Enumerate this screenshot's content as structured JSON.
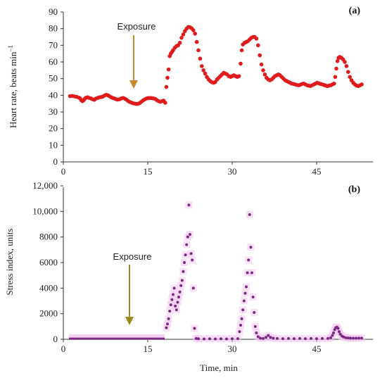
{
  "chart_data": [
    {
      "type": "scatter",
      "panel_label": "(a)",
      "ylabel": "Heart rate, beats min",
      "ylabel_sup": "−1",
      "xlabel": "",
      "xlim": [
        0,
        55
      ],
      "ylim": [
        0,
        90
      ],
      "x_ticks": [
        "0",
        "15",
        "30",
        "45"
      ],
      "y_ticks": [
        "0",
        "10",
        "20",
        "30",
        "40",
        "50",
        "60",
        "70",
        "80",
        "90"
      ],
      "annotation": {
        "text": "Exposure",
        "x": 13,
        "arrow_color": "#c98a2e"
      },
      "series": [
        {
          "color": "#e01b1b",
          "points": [
            [
              1.2,
              39.5
            ],
            [
              1.6,
              39.6
            ],
            [
              2.0,
              39.3
            ],
            [
              2.4,
              39.0
            ],
            [
              2.8,
              38.5
            ],
            [
              3.0,
              38.0
            ],
            [
              3.2,
              37.0
            ],
            [
              3.4,
              36.5
            ],
            [
              3.6,
              37.0
            ],
            [
              3.8,
              37.8
            ],
            [
              4.0,
              38.5
            ],
            [
              4.3,
              38.8
            ],
            [
              4.6,
              38.4
            ],
            [
              4.9,
              38.1
            ],
            [
              5.2,
              37.6
            ],
            [
              5.5,
              37.3
            ],
            [
              5.8,
              38.0
            ],
            [
              6.1,
              38.4
            ],
            [
              6.4,
              38.8
            ],
            [
              6.7,
              38.9
            ],
            [
              7.0,
              39.2
            ],
            [
              7.3,
              39.8
            ],
            [
              7.6,
              40.3
            ],
            [
              7.9,
              40.0
            ],
            [
              8.2,
              39.4
            ],
            [
              8.5,
              38.8
            ],
            [
              8.8,
              38.4
            ],
            [
              9.1,
              38.0
            ],
            [
              9.4,
              37.6
            ],
            [
              9.7,
              37.4
            ],
            [
              10.0,
              37.6
            ],
            [
              10.3,
              38.1
            ],
            [
              10.6,
              38.4
            ],
            [
              10.9,
              38.0
            ],
            [
              11.2,
              37.4
            ],
            [
              11.5,
              36.6
            ],
            [
              11.8,
              36.0
            ],
            [
              12.1,
              35.6
            ],
            [
              12.4,
              35.2
            ],
            [
              12.7,
              35.0
            ],
            [
              13.0,
              34.8
            ],
            [
              13.3,
              34.9
            ],
            [
              13.6,
              35.4
            ],
            [
              13.9,
              36.2
            ],
            [
              14.2,
              37.0
            ],
            [
              14.5,
              37.6
            ],
            [
              14.8,
              38.1
            ],
            [
              15.1,
              38.3
            ],
            [
              15.4,
              38.4
            ],
            [
              15.7,
              38.3
            ],
            [
              16.0,
              38.1
            ],
            [
              16.3,
              37.8
            ],
            [
              16.6,
              37.1
            ],
            [
              16.9,
              36.5
            ],
            [
              17.2,
              36.1
            ],
            [
              17.5,
              36.4
            ],
            [
              17.8,
              36.8
            ],
            [
              18.1,
              35.5
            ],
            [
              18.3,
              45.0
            ],
            [
              18.5,
              50.5
            ],
            [
              18.7,
              55.5
            ],
            [
              18.9,
              63.5
            ],
            [
              19.1,
              65.0
            ],
            [
              19.3,
              66.0
            ],
            [
              19.5,
              67.0
            ],
            [
              19.8,
              68.5
            ],
            [
              20.1,
              69.5
            ],
            [
              20.4,
              70.0
            ],
            [
              20.7,
              71.5
            ],
            [
              21.0,
              74.5
            ],
            [
              21.3,
              76.5
            ],
            [
              21.6,
              78.5
            ],
            [
              21.9,
              80.0
            ],
            [
              22.2,
              81.0
            ],
            [
              22.5,
              80.8
            ],
            [
              22.8,
              80.2
            ],
            [
              23.1,
              79.0
            ],
            [
              23.4,
              77.0
            ],
            [
              23.7,
              72.0
            ],
            [
              24.0,
              67.0
            ],
            [
              24.3,
              62.0
            ],
            [
              24.6,
              57.5
            ],
            [
              24.9,
              55.0
            ],
            [
              25.2,
              53.0
            ],
            [
              25.5,
              51.0
            ],
            [
              25.8,
              49.5
            ],
            [
              26.1,
              48.5
            ],
            [
              26.4,
              47.8
            ],
            [
              26.7,
              47.5
            ],
            [
              27.0,
              48.0
            ],
            [
              27.3,
              49.5
            ],
            [
              27.6,
              50.5
            ],
            [
              27.9,
              51.5
            ],
            [
              28.2,
              52.5
            ],
            [
              28.5,
              53.5
            ],
            [
              28.8,
              53.0
            ],
            [
              29.1,
              52.5
            ],
            [
              29.4,
              51.5
            ],
            [
              29.7,
              51.0
            ],
            [
              30.0,
              51.5
            ],
            [
              30.3,
              52.0
            ],
            [
              30.6,
              51.5
            ],
            [
              30.9,
              51.0
            ],
            [
              31.2,
              51.5
            ],
            [
              31.5,
              59.0
            ],
            [
              31.7,
              67.0
            ],
            [
              31.9,
              70.5
            ],
            [
              32.2,
              71.5
            ],
            [
              32.5,
              72.0
            ],
            [
              32.8,
              72.5
            ],
            [
              33.1,
              73.5
            ],
            [
              33.4,
              74.5
            ],
            [
              33.7,
              75.0
            ],
            [
              34.0,
              75.0
            ],
            [
              34.3,
              74.0
            ],
            [
              34.6,
              70.0
            ],
            [
              34.9,
              64.0
            ],
            [
              35.2,
              58.5
            ],
            [
              35.5,
              55.0
            ],
            [
              35.8,
              52.5
            ],
            [
              36.1,
              50.5
            ],
            [
              36.4,
              49.5
            ],
            [
              36.7,
              49.0
            ],
            [
              37.0,
              49.5
            ],
            [
              37.3,
              50.5
            ],
            [
              37.6,
              51.5
            ],
            [
              37.9,
              52.0
            ],
            [
              38.2,
              52.5
            ],
            [
              38.5,
              52.0
            ],
            [
              38.8,
              51.0
            ],
            [
              39.1,
              50.0
            ],
            [
              39.4,
              49.0
            ],
            [
              39.7,
              48.5
            ],
            [
              40.0,
              48.0
            ],
            [
              40.3,
              47.5
            ],
            [
              40.6,
              47.0
            ],
            [
              40.9,
              46.8
            ],
            [
              41.2,
              46.5
            ],
            [
              41.5,
              46.2
            ],
            [
              41.8,
              46.0
            ],
            [
              42.1,
              46.3
            ],
            [
              42.4,
              46.8
            ],
            [
              42.7,
              47.0
            ],
            [
              43.0,
              46.5
            ],
            [
              43.3,
              46.0
            ],
            [
              43.6,
              45.8
            ],
            [
              43.9,
              45.5
            ],
            [
              44.2,
              46.0
            ],
            [
              44.5,
              46.5
            ],
            [
              44.8,
              47.0
            ],
            [
              45.1,
              47.5
            ],
            [
              45.4,
              47.2
            ],
            [
              45.7,
              46.8
            ],
            [
              46.0,
              46.5
            ],
            [
              46.3,
              46.2
            ],
            [
              46.6,
              45.8
            ],
            [
              46.9,
              45.5
            ],
            [
              47.2,
              45.8
            ],
            [
              47.5,
              46.0
            ],
            [
              47.8,
              46.5
            ],
            [
              48.1,
              47.0
            ],
            [
              48.3,
              51.0
            ],
            [
              48.5,
              56.0
            ],
            [
              48.7,
              60.5
            ],
            [
              48.9,
              62.5
            ],
            [
              49.1,
              63.0
            ],
            [
              49.4,
              62.5
            ],
            [
              49.7,
              61.5
            ],
            [
              50.0,
              60.0
            ],
            [
              50.3,
              57.5
            ],
            [
              50.6,
              54.0
            ],
            [
              50.9,
              51.0
            ],
            [
              51.2,
              49.0
            ],
            [
              51.5,
              47.5
            ],
            [
              51.8,
              46.5
            ],
            [
              52.1,
              45.8
            ],
            [
              52.4,
              45.5
            ],
            [
              52.7,
              46.0
            ],
            [
              53.0,
              46.5
            ]
          ]
        }
      ]
    },
    {
      "type": "scatter",
      "panel_label": "(b)",
      "ylabel": "Stress index, units",
      "xlabel": "Time, min",
      "xlim": [
        0,
        55
      ],
      "ylim": [
        0,
        12000
      ],
      "x_ticks": [
        "0",
        "15",
        "30",
        "45"
      ],
      "y_ticks": [
        "0",
        "2000",
        "4000",
        "6000",
        "8000",
        "10,000",
        "12,000"
      ],
      "annotation": {
        "text": "Exposure",
        "x": 13,
        "arrow_color": "#9a8a1e"
      },
      "band": {
        "color": "#f3c6f0",
        "note": "light magenta shading near baseline"
      },
      "series": [
        {
          "color": "#7a2a82",
          "baseline": {
            "x_start": 1.0,
            "x_end": 18.0,
            "value": 50
          },
          "points": [
            [
              18.3,
              900
            ],
            [
              18.5,
              1200
            ],
            [
              18.7,
              1600
            ],
            [
              18.9,
              2200
            ],
            [
              19.1,
              2700
            ],
            [
              19.3,
              3100
            ],
            [
              19.5,
              3500
            ],
            [
              19.7,
              4000
            ],
            [
              19.9,
              2600
            ],
            [
              20.1,
              2300
            ],
            [
              20.3,
              2900
            ],
            [
              20.5,
              3300
            ],
            [
              20.7,
              3700
            ],
            [
              20.9,
              4200
            ],
            [
              21.1,
              4600
            ],
            [
              21.3,
              5300
            ],
            [
              21.5,
              6000
            ],
            [
              21.7,
              6600
            ],
            [
              21.9,
              7400
            ],
            [
              22.1,
              8000
            ],
            [
              22.3,
              10500
            ],
            [
              22.5,
              8200
            ],
            [
              22.7,
              6700
            ],
            [
              22.9,
              6200
            ],
            [
              23.1,
              4000
            ],
            [
              23.3,
              850
            ],
            [
              23.6,
              60
            ],
            [
              24.0,
              40
            ],
            [
              25.0,
              30
            ],
            [
              26.0,
              40
            ],
            [
              27.0,
              30
            ],
            [
              28.0,
              40
            ],
            [
              29.0,
              30
            ],
            [
              30.0,
              40
            ],
            [
              31.0,
              50
            ],
            [
              31.3,
              600
            ],
            [
              31.5,
              1100
            ],
            [
              31.7,
              1600
            ],
            [
              31.9,
              2300
            ],
            [
              32.1,
              3000
            ],
            [
              32.3,
              3600
            ],
            [
              32.5,
              4100
            ],
            [
              32.7,
              5200
            ],
            [
              32.9,
              6200
            ],
            [
              33.1,
              9750
            ],
            [
              33.3,
              7200
            ],
            [
              33.5,
              5200
            ],
            [
              33.7,
              3300
            ],
            [
              33.9,
              2100
            ],
            [
              34.1,
              1000
            ],
            [
              34.3,
              500
            ],
            [
              34.6,
              200
            ],
            [
              35.0,
              80
            ],
            [
              35.5,
              60
            ],
            [
              36.0,
              150
            ],
            [
              36.4,
              300
            ],
            [
              36.8,
              150
            ],
            [
              37.3,
              80
            ],
            [
              38.0,
              60
            ],
            [
              39.0,
              50
            ],
            [
              40.0,
              60
            ],
            [
              41.0,
              50
            ],
            [
              42.0,
              60
            ],
            [
              43.0,
              50
            ],
            [
              44.0,
              60
            ],
            [
              45.0,
              50
            ],
            [
              46.0,
              60
            ],
            [
              47.0,
              70
            ],
            [
              47.5,
              120
            ],
            [
              47.8,
              300
            ],
            [
              48.0,
              500
            ],
            [
              48.2,
              750
            ],
            [
              48.4,
              900
            ],
            [
              48.6,
              950
            ],
            [
              48.8,
              850
            ],
            [
              49.0,
              600
            ],
            [
              49.2,
              400
            ],
            [
              49.5,
              250
            ],
            [
              49.8,
              180
            ],
            [
              50.2,
              120
            ],
            [
              50.6,
              100
            ],
            [
              51.0,
              90
            ],
            [
              51.5,
              80
            ],
            [
              52.0,
              80
            ],
            [
              52.5,
              90
            ],
            [
              53.0,
              90
            ]
          ]
        }
      ]
    }
  ]
}
